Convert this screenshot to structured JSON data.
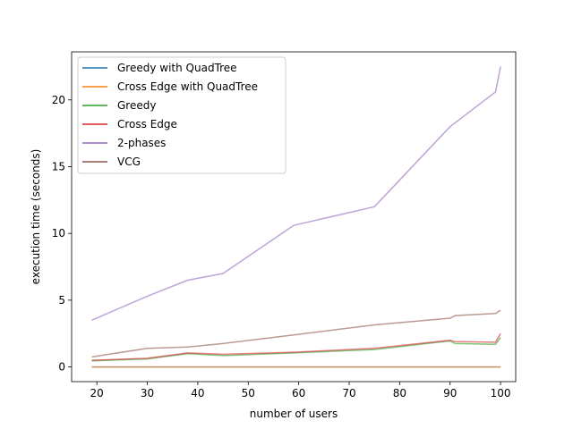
{
  "chart_data": {
    "type": "line",
    "title": "",
    "xlabel": "number of users",
    "ylabel": "execution time (seconds)",
    "xlim": [
      15,
      103
    ],
    "ylim": [
      -1.1,
      23.6
    ],
    "xticks": [
      20,
      30,
      40,
      50,
      60,
      70,
      80,
      90,
      100
    ],
    "yticks": [
      0,
      5,
      10,
      15,
      20
    ],
    "grid": false,
    "legend_position": "top-left",
    "series": [
      {
        "name": "Greedy with QuadTree",
        "color": "#1f77b4",
        "x": [
          19,
          30,
          38,
          45,
          59,
          75,
          90,
          91,
          99,
          100
        ],
        "y": [
          0.0,
          0.0,
          0.0,
          0.0,
          0.0,
          0.0,
          0.0,
          0.0,
          0.0,
          0.0
        ]
      },
      {
        "name": "Cross Edge with QuadTree",
        "color": "#ff7f0e",
        "x": [
          19,
          30,
          38,
          45,
          59,
          75,
          90,
          91,
          99,
          100
        ],
        "y": [
          0.0,
          0.0,
          0.0,
          0.0,
          0.0,
          0.0,
          0.0,
          0.0,
          0.0,
          0.0
        ]
      },
      {
        "name": "Greedy",
        "color": "#2ca02c",
        "x": [
          19,
          30,
          38,
          45,
          59,
          75,
          90,
          91,
          99,
          100
        ],
        "y": [
          0.45,
          0.6,
          1.0,
          0.85,
          1.05,
          1.3,
          1.95,
          1.75,
          1.7,
          2.2
        ]
      },
      {
        "name": "Cross Edge",
        "color": "#d62728",
        "x": [
          19,
          30,
          38,
          45,
          59,
          75,
          90,
          91,
          99,
          100
        ],
        "y": [
          0.5,
          0.65,
          1.05,
          0.95,
          1.1,
          1.4,
          2.0,
          1.9,
          1.85,
          2.5
        ]
      },
      {
        "name": "2-phases",
        "color": "#9467bd",
        "x": [
          19,
          30,
          38,
          45,
          59,
          75,
          90,
          99,
          100
        ],
        "y": [
          3.5,
          5.3,
          6.5,
          7.0,
          10.6,
          12.0,
          18.0,
          20.6,
          22.5
        ]
      },
      {
        "name": "VCG",
        "color": "#8c564b",
        "x": [
          19,
          30,
          38,
          45,
          59,
          75,
          90,
          91,
          99,
          100
        ],
        "y": [
          0.75,
          1.4,
          1.5,
          1.75,
          2.4,
          3.15,
          3.65,
          3.85,
          4.0,
          4.25
        ]
      }
    ]
  }
}
